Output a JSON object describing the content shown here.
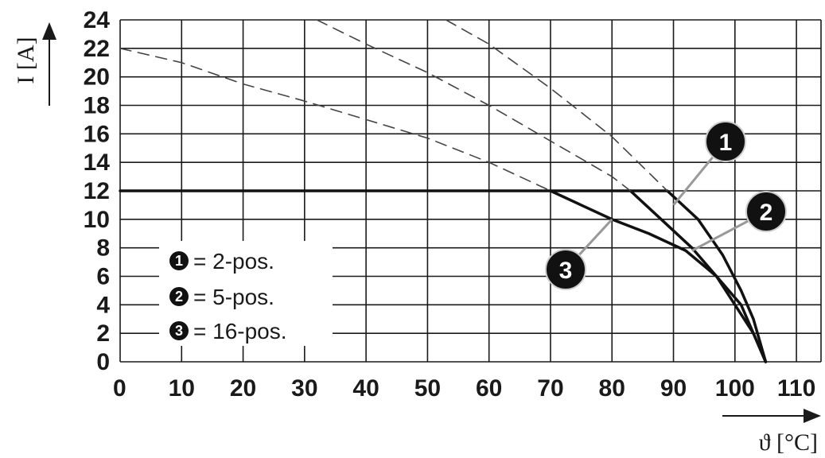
{
  "chart_data": {
    "type": "line",
    "xlabel": "ϑ [°C]",
    "ylabel": "I [A]",
    "xlim": [
      0,
      114
    ],
    "ylim": [
      0,
      24
    ],
    "x_ticks": [
      0,
      10,
      20,
      30,
      40,
      50,
      60,
      70,
      80,
      90,
      100,
      110
    ],
    "y_ticks": [
      0,
      2,
      4,
      6,
      8,
      10,
      12,
      14,
      16,
      18,
      20,
      22,
      24
    ],
    "x_tick_labels": [
      "0",
      "10",
      "20",
      "30",
      "40",
      "50",
      "60",
      "70",
      "80",
      "90",
      "100",
      "110"
    ],
    "y_tick_labels": [
      "0",
      "2",
      "4",
      "6",
      "8",
      "10",
      "12",
      "14",
      "16",
      "18",
      "20",
      "22",
      "24"
    ],
    "grid": true,
    "legend_position": "bottom-left",
    "series": [
      {
        "marker": "1",
        "name": "2-pos.",
        "style": "solid",
        "x": [
          0,
          89,
          94,
          98,
          101,
          103,
          105
        ],
        "y": [
          12,
          12,
          10,
          7.5,
          5,
          3,
          0
        ]
      },
      {
        "marker": "2",
        "name": "5-pos.",
        "style": "solid",
        "x": [
          83,
          88,
          93,
          97,
          100,
          103,
          105
        ],
        "y": [
          12,
          10,
          8,
          6,
          4,
          2,
          0
        ]
      },
      {
        "marker": "3",
        "name": "16-pos.",
        "style": "solid",
        "x": [
          70,
          75,
          80,
          86,
          92,
          97,
          101,
          103,
          105
        ],
        "y": [
          12,
          11,
          10,
          9,
          7.8,
          6,
          4,
          2,
          0
        ]
      },
      {
        "marker": "",
        "name": "",
        "style": "dashed",
        "x": [
          0,
          10,
          20,
          30,
          40,
          50,
          60,
          70
        ],
        "y": [
          22,
          21,
          19.5,
          18.3,
          17,
          15.7,
          14,
          12
        ]
      },
      {
        "marker": "",
        "name": "",
        "style": "dashed",
        "x": [
          32,
          40,
          50,
          60,
          70,
          80,
          83
        ],
        "y": [
          24,
          22.3,
          20.3,
          18,
          15.5,
          13,
          12
        ]
      },
      {
        "marker": "",
        "name": "",
        "style": "dashed",
        "x": [
          53,
          60,
          70,
          80,
          89
        ],
        "y": [
          24,
          22.3,
          19.2,
          15.8,
          12
        ]
      }
    ],
    "callouts": [
      {
        "label": "1",
        "point": [
          90,
          11
        ]
      },
      {
        "label": "2",
        "point": [
          93,
          7.8
        ]
      },
      {
        "label": "3",
        "point": [
          80,
          10
        ]
      }
    ],
    "legend": [
      {
        "marker": "1",
        "text": "= 2-pos."
      },
      {
        "marker": "2",
        "text": "= 5-pos."
      },
      {
        "marker": "3",
        "text": "= 16-pos."
      }
    ]
  },
  "colors": {
    "grid": "#1a1a1a",
    "curve": "#111111",
    "dashed": "#444444",
    "callout_line": "#999999",
    "badge_fill": "#111111",
    "badge_text": "#ffffff"
  }
}
